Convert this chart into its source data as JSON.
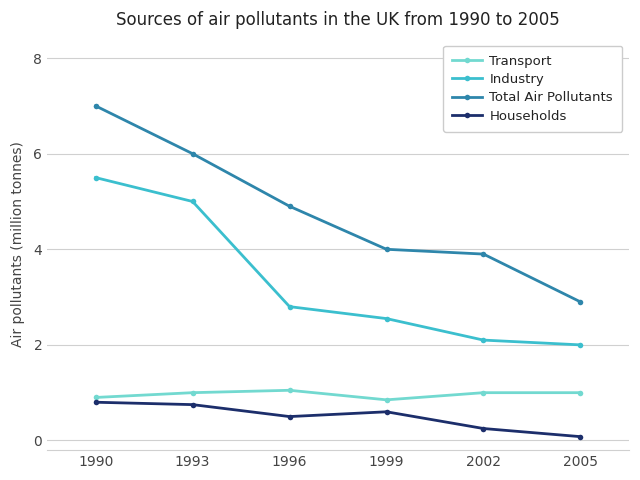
{
  "title": "Sources of air pollutants in the UK from 1990 to 2005",
  "ylabel": "Air pollutants (million tonnes)",
  "years": [
    1990,
    1993,
    1996,
    1999,
    2002,
    2005
  ],
  "series": {
    "Transport": {
      "values": [
        0.9,
        1.0,
        1.05,
        0.85,
        1.0,
        1.0
      ],
      "color": "#72D9D0",
      "linewidth": 2.0
    },
    "Industry": {
      "values": [
        5.5,
        5.0,
        2.8,
        2.55,
        2.1,
        2.0
      ],
      "color": "#3BBFCE",
      "linewidth": 2.0
    },
    "Total Air Pollutants": {
      "values": [
        7.0,
        6.0,
        4.9,
        4.0,
        3.9,
        2.9
      ],
      "color": "#2E86AB",
      "linewidth": 2.0
    },
    "Households": {
      "values": [
        0.8,
        0.75,
        0.5,
        0.6,
        0.25,
        0.08
      ],
      "color": "#1C2E6B",
      "linewidth": 2.0
    }
  },
  "ylim": [
    -0.2,
    8.4
  ],
  "yticks": [
    0,
    2,
    4,
    6,
    8
  ],
  "xticks": [
    1990,
    1993,
    1996,
    1999,
    2002,
    2005
  ],
  "legend_order": [
    "Transport",
    "Industry",
    "Total Air Pollutants",
    "Households"
  ],
  "background_color": "#ffffff",
  "grid_color": "#d0d0d0",
  "title_fontsize": 12,
  "label_fontsize": 10,
  "tick_fontsize": 10
}
